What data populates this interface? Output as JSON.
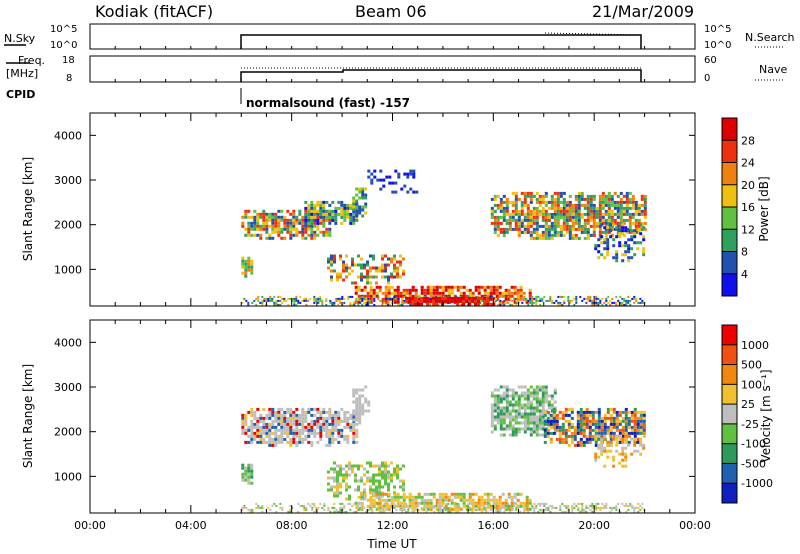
{
  "header": {
    "station": "Kodiak (fitACF)",
    "beam": "Beam 06",
    "date": "21/Mar/2009"
  },
  "left_labels": {
    "nsky": "N.Sky",
    "freq": "Freq.",
    "freq_unit": "[MHz]",
    "cpid": "CPID"
  },
  "right_labels": {
    "nsearch": "N.Search",
    "nave": "Nave"
  },
  "cpid_text": "normalsound (fast) -157",
  "strip_ticks": {
    "nsky_left": [
      "10^5",
      "10^0"
    ],
    "nsky_right": [
      "10^5",
      "10^0"
    ],
    "freq_left": [
      "18",
      "8"
    ],
    "nave_right": [
      "60",
      "0"
    ]
  },
  "colors": {
    "power_scale": [
      "#1010ee",
      "#2050b0",
      "#30a060",
      "#60c040",
      "#f0c010",
      "#f08010",
      "#ee3010",
      "#dd0000"
    ],
    "velocity_scale": [
      "#ee0000",
      "#f05010",
      "#f08810",
      "#f0c030",
      "#bebebe",
      "#60c040",
      "#2e9a5a",
      "#2060b0",
      "#1020c0"
    ]
  },
  "chart_data": [
    {
      "type": "heatmap",
      "name": "Power",
      "xlabel": "",
      "ylabel": "Slant Range [km]",
      "xlim": [
        0,
        24
      ],
      "ylim": [
        180,
        4500
      ],
      "yticks": [
        "1000",
        "2000",
        "3000",
        "4000"
      ],
      "colorbar": {
        "label": "Power [dB]",
        "ticks": [
          "4",
          "8",
          "12",
          "16",
          "20",
          "24",
          "28"
        ],
        "range": [
          0,
          32
        ]
      },
      "data_window_hours": [
        6,
        22
      ]
    },
    {
      "type": "heatmap",
      "name": "Velocity",
      "xlabel": "Time UT",
      "ylabel": "Slant Range [km]",
      "xlim": [
        0,
        24
      ],
      "ylim": [
        180,
        4500
      ],
      "xticks": [
        "00:00",
        "04:00",
        "08:00",
        "12:00",
        "16:00",
        "20:00",
        "00:00"
      ],
      "yticks": [
        "1000",
        "2000",
        "3000",
        "4000"
      ],
      "colorbar": {
        "label": "Velocity [m s⁻¹]",
        "ticks": [
          "1000",
          "500",
          "100",
          "25",
          "-25",
          "-100",
          "-500",
          "-1000"
        ]
      },
      "data_window_hours": [
        6,
        22
      ]
    }
  ]
}
